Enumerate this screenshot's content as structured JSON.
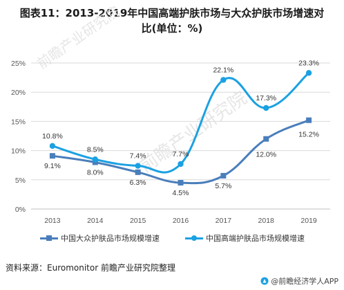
{
  "title": {
    "line1": "图表11：2013-2019年中国高端护肤市场与大众护肤市场增速对",
    "line2": "比(单位：%)"
  },
  "watermark": {
    "main": "前瞻产业研究院",
    "sub": "前瞻产业研究院"
  },
  "colors": {
    "mass": "#4a7ebb",
    "high": "#1ba1e2",
    "grid": "#d9d9d9",
    "axis": "#bfbfbf"
  },
  "chart_data": {
    "type": "line",
    "categories": [
      "2013",
      "2014",
      "2015",
      "2016",
      "2017",
      "2018",
      "2019"
    ],
    "ylim": [
      0,
      25
    ],
    "yticks": [
      "0%",
      "5%",
      "10%",
      "15%",
      "20%",
      "25%"
    ],
    "ytick_values": [
      0,
      5,
      10,
      15,
      20,
      25
    ],
    "grid": "horizontal",
    "legend_position": "bottom",
    "series": [
      {
        "name": "中国大众护肤品市场规模增速",
        "marker": "square",
        "values": [
          9.1,
          8.0,
          6.3,
          4.5,
          5.7,
          12.0,
          15.2
        ],
        "labels": [
          "9.1%",
          "8.0%",
          "6.3%",
          "4.5%",
          "5.7%",
          "12.0%",
          "15.2%"
        ]
      },
      {
        "name": "中国高端护肤品市场规模增速",
        "marker": "circle",
        "values": [
          10.8,
          8.5,
          7.4,
          7.7,
          22.1,
          17.3,
          23.3
        ],
        "labels": [
          "10.8%",
          "8.5%",
          "7.4%",
          "7.7%",
          "22.1%",
          "17.3%",
          "23.3%"
        ]
      }
    ]
  },
  "source": "资料来源：Euromonitor 前瞻产业研究院整理",
  "credit": "@前瞻经济学人APP"
}
